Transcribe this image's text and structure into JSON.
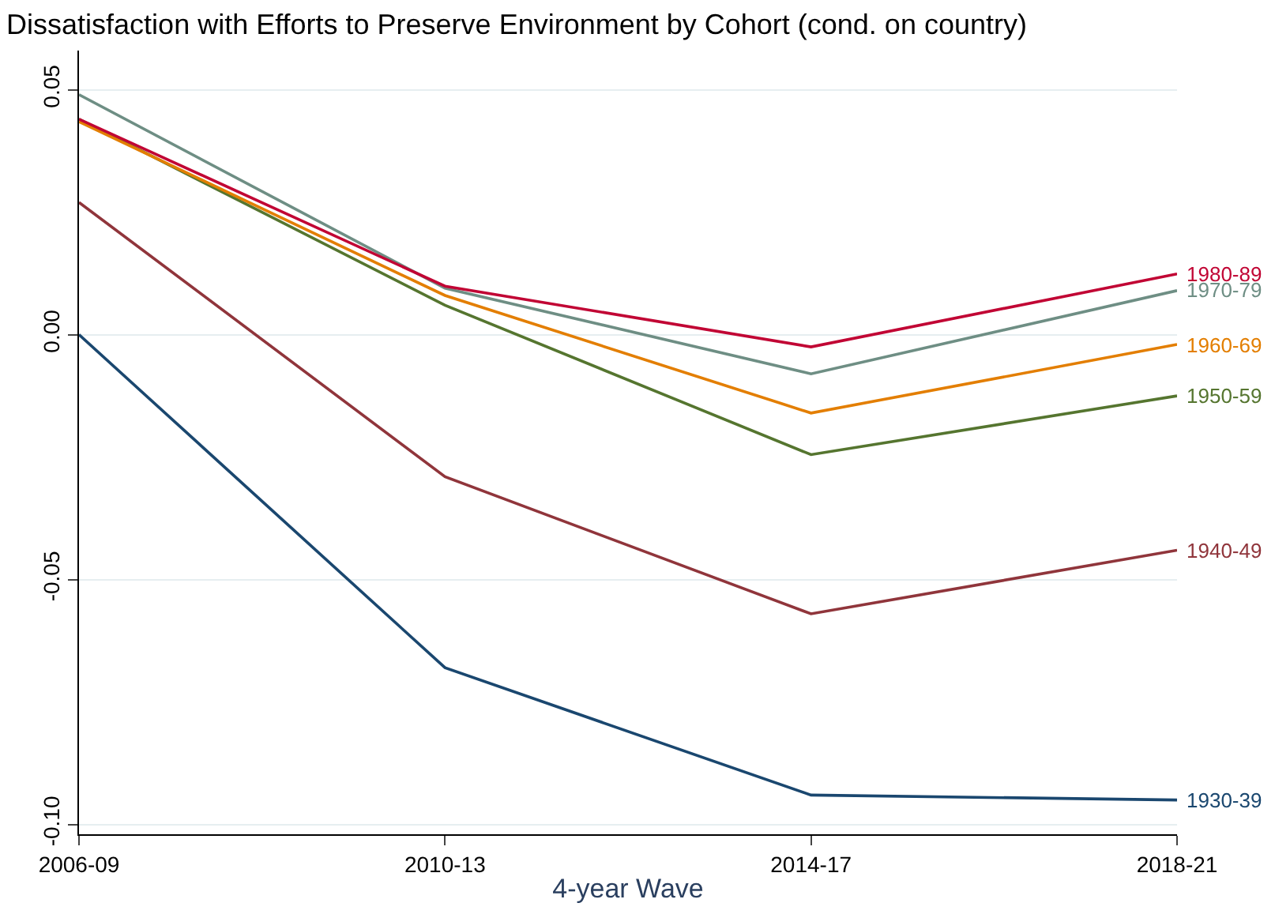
{
  "chart_data": {
    "type": "line",
    "title": "Dissatisfaction with Efforts to Preserve Environment by Cohort (cond. on country)",
    "xlabel": "4-year Wave",
    "categories": [
      "2006-09",
      "2010-13",
      "2014-17",
      "2018-21"
    ],
    "series": [
      {
        "name": "1930-39",
        "color": "#1a476f",
        "values": [
          0.0,
          -0.068,
          -0.094,
          -0.095
        ]
      },
      {
        "name": "1940-49",
        "color": "#90353b",
        "values": [
          0.027,
          -0.029,
          -0.057,
          -0.044
        ]
      },
      {
        "name": "1950-59",
        "color": "#55752f",
        "values": [
          0.044,
          0.006,
          -0.0245,
          -0.0125
        ]
      },
      {
        "name": "1960-69",
        "color": "#e37e00",
        "values": [
          0.0435,
          0.008,
          -0.016,
          -0.002
        ]
      },
      {
        "name": "1970-79",
        "color": "#6e8e84",
        "values": [
          0.049,
          0.0095,
          -0.008,
          0.009
        ]
      },
      {
        "name": "1980-89",
        "color": "#c10534",
        "values": [
          0.044,
          0.0099,
          -0.0025,
          0.0124
        ]
      }
    ],
    "ylim": [
      -0.102,
      0.058
    ],
    "yticks": [
      {
        "value": -0.1,
        "label": "-0.10"
      },
      {
        "value": -0.05,
        "label": "-0.05"
      },
      {
        "value": 0,
        "label": "0.00"
      },
      {
        "value": 0.05,
        "label": "0.05"
      }
    ],
    "grid": "y",
    "legend": false,
    "line_style": "solid",
    "marker": "none"
  }
}
